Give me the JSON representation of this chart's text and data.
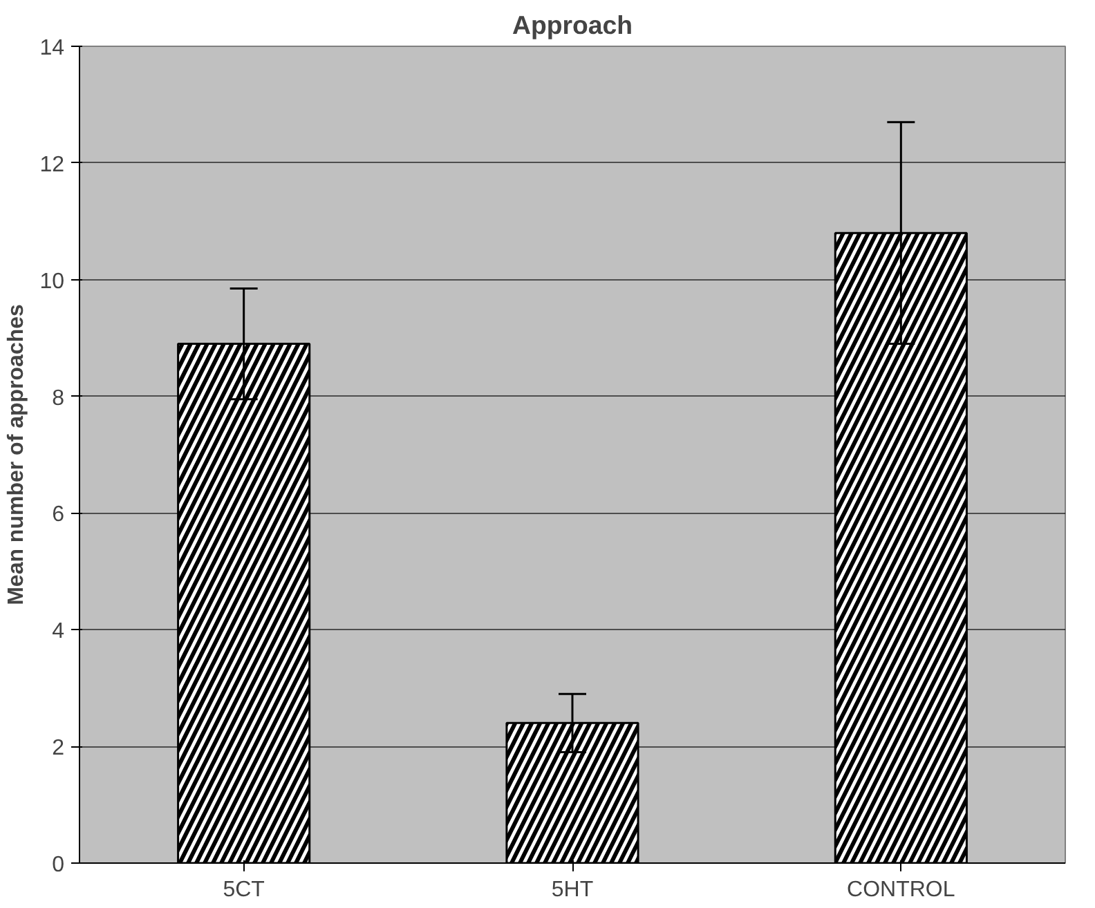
{
  "chart_data": {
    "type": "bar",
    "title": "Approach",
    "ylabel": "Mean number of approaches",
    "categories": [
      "5CT",
      "5HT",
      "CONTROL"
    ],
    "values": [
      8.9,
      2.4,
      10.8
    ],
    "errors": [
      0.95,
      0.5,
      1.9
    ],
    "color": "#ffffff",
    "ylim": [
      0,
      14
    ],
    "yticks": [
      0,
      2,
      4,
      6,
      8,
      10,
      12,
      14
    ],
    "grid": "y"
  }
}
